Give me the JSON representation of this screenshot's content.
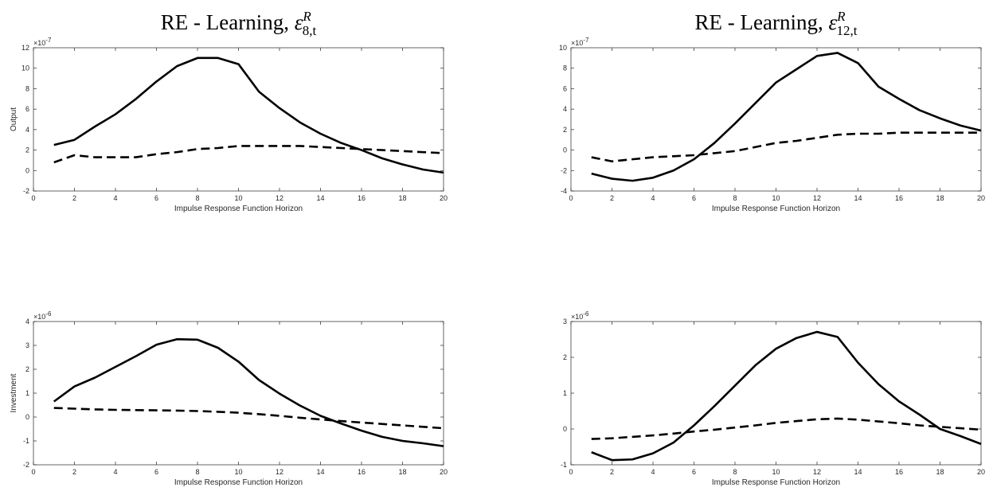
{
  "chart_data": [
    {
      "type": "line",
      "title": "RE - Learning, ",
      "title_symbol": "ε",
      "title_sup": "R",
      "title_sub": "8,t",
      "xlabel": "Impulse Response Function Horizon",
      "ylabel": "Output",
      "xlim": [
        0,
        20
      ],
      "ylim": [
        -2,
        12
      ],
      "xticks": [
        0,
        2,
        4,
        6,
        8,
        10,
        12,
        14,
        16,
        18,
        20
      ],
      "yticks": [
        -2,
        0,
        2,
        4,
        6,
        8,
        10,
        12
      ],
      "y_multiplier": "-7",
      "grid": false,
      "x": [
        1,
        2,
        3,
        4,
        5,
        6,
        7,
        8,
        9,
        10,
        11,
        12,
        13,
        14,
        15,
        16,
        17,
        18,
        19,
        20
      ],
      "series": [
        {
          "style": "solid",
          "values": [
            2.5,
            3.0,
            4.3,
            5.5,
            7.0,
            8.7,
            10.2,
            11.0,
            11.0,
            10.4,
            7.7,
            6.1,
            4.7,
            3.6,
            2.7,
            2.0,
            1.2,
            0.6,
            0.1,
            -0.2
          ]
        },
        {
          "style": "dashed",
          "values": [
            0.8,
            1.5,
            1.3,
            1.3,
            1.3,
            1.6,
            1.8,
            2.1,
            2.2,
            2.4,
            2.4,
            2.4,
            2.4,
            2.3,
            2.2,
            2.1,
            2.0,
            1.9,
            1.8,
            1.7
          ]
        }
      ]
    },
    {
      "type": "line",
      "title": "RE - Learning, ",
      "title_symbol": "ε",
      "title_sup": "R",
      "title_sub": "12,t",
      "xlabel": "Impulse Response Function Horizon",
      "ylabel": "",
      "xlim": [
        0,
        20
      ],
      "ylim": [
        -4,
        10
      ],
      "xticks": [
        0,
        2,
        4,
        6,
        8,
        10,
        12,
        14,
        16,
        18,
        20
      ],
      "yticks": [
        -4,
        -2,
        0,
        2,
        4,
        6,
        8,
        10
      ],
      "y_multiplier": "-7",
      "grid": false,
      "x": [
        1,
        2,
        3,
        4,
        5,
        6,
        7,
        8,
        9,
        10,
        11,
        12,
        13,
        14,
        15,
        16,
        17,
        18,
        19,
        20
      ],
      "series": [
        {
          "style": "solid",
          "values": [
            -2.3,
            -2.8,
            -3.0,
            -2.7,
            -2.0,
            -0.9,
            0.7,
            2.6,
            4.6,
            6.6,
            7.9,
            9.2,
            9.5,
            8.5,
            6.2,
            5.0,
            3.9,
            3.1,
            2.4,
            1.9
          ]
        },
        {
          "style": "dashed",
          "values": [
            -0.7,
            -1.1,
            -0.9,
            -0.7,
            -0.6,
            -0.5,
            -0.3,
            -0.1,
            0.3,
            0.7,
            0.9,
            1.2,
            1.5,
            1.6,
            1.6,
            1.7,
            1.7,
            1.7,
            1.7,
            1.7
          ]
        }
      ]
    },
    {
      "type": "line",
      "title": "",
      "xlabel": "Impulse Response Function Horizon",
      "ylabel": "Investment",
      "xlim": [
        0,
        20
      ],
      "ylim": [
        -2,
        4
      ],
      "xticks": [
        0,
        2,
        4,
        6,
        8,
        10,
        12,
        14,
        16,
        18,
        20
      ],
      "yticks": [
        -2,
        -1,
        0,
        1,
        2,
        3,
        4
      ],
      "y_multiplier": "-6",
      "grid": false,
      "x": [
        1,
        2,
        3,
        4,
        5,
        6,
        7,
        8,
        9,
        10,
        11,
        12,
        13,
        14,
        15,
        16,
        17,
        18,
        19,
        20
      ],
      "series": [
        {
          "style": "solid",
          "values": [
            0.65,
            1.28,
            1.65,
            2.1,
            2.55,
            3.03,
            3.26,
            3.24,
            2.9,
            2.32,
            1.55,
            0.98,
            0.48,
            0.05,
            -0.27,
            -0.57,
            -0.83,
            -1.0,
            -1.1,
            -1.22
          ]
        },
        {
          "style": "dashed",
          "values": [
            0.38,
            0.35,
            0.32,
            0.3,
            0.29,
            0.28,
            0.27,
            0.25,
            0.22,
            0.18,
            0.12,
            0.05,
            -0.03,
            -0.1,
            -0.17,
            -0.23,
            -0.29,
            -0.35,
            -0.41,
            -0.47
          ]
        }
      ]
    },
    {
      "type": "line",
      "title": "",
      "xlabel": "Impulse Response Function Horizon",
      "ylabel": "",
      "xlim": [
        0,
        20
      ],
      "ylim": [
        -1,
        3
      ],
      "xticks": [
        0,
        2,
        4,
        6,
        8,
        10,
        12,
        14,
        16,
        18,
        20
      ],
      "yticks": [
        -1,
        0,
        1,
        2,
        3
      ],
      "y_multiplier": "-6",
      "grid": false,
      "x": [
        1,
        2,
        3,
        4,
        5,
        6,
        7,
        8,
        9,
        10,
        11,
        12,
        13,
        14,
        15,
        16,
        17,
        18,
        19,
        20
      ],
      "series": [
        {
          "style": "solid",
          "values": [
            -0.65,
            -0.87,
            -0.85,
            -0.68,
            -0.38,
            0.1,
            0.64,
            1.21,
            1.78,
            2.24,
            2.54,
            2.71,
            2.57,
            1.85,
            1.25,
            0.77,
            0.4,
            0.0,
            -0.2,
            -0.42
          ]
        },
        {
          "style": "dashed",
          "values": [
            -0.28,
            -0.26,
            -0.22,
            -0.18,
            -0.13,
            -0.07,
            -0.02,
            0.04,
            0.1,
            0.17,
            0.22,
            0.27,
            0.29,
            0.26,
            0.21,
            0.16,
            0.1,
            0.06,
            0.02,
            -0.02
          ]
        }
      ]
    }
  ]
}
